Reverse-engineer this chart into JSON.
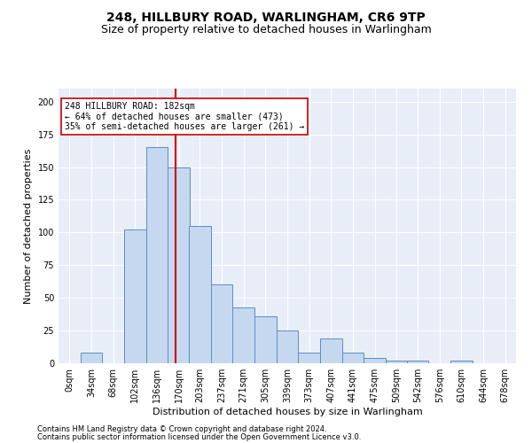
{
  "title": "248, HILLBURY ROAD, WARLINGHAM, CR6 9TP",
  "subtitle": "Size of property relative to detached houses in Warlingham",
  "xlabel": "Distribution of detached houses by size in Warlingham",
  "ylabel": "Number of detached properties",
  "footer_line1": "Contains HM Land Registry data © Crown copyright and database right 2024.",
  "footer_line2": "Contains public sector information licensed under the Open Government Licence v3.0.",
  "bin_labels": [
    "0sqm",
    "34sqm",
    "68sqm",
    "102sqm",
    "136sqm",
    "170sqm",
    "203sqm",
    "237sqm",
    "271sqm",
    "305sqm",
    "339sqm",
    "373sqm",
    "407sqm",
    "441sqm",
    "475sqm",
    "509sqm",
    "542sqm",
    "576sqm",
    "610sqm",
    "644sqm",
    "678sqm"
  ],
  "bar_heights": [
    0,
    8,
    0,
    102,
    165,
    150,
    105,
    60,
    43,
    36,
    25,
    8,
    19,
    8,
    4,
    2,
    2,
    0,
    2,
    0,
    0
  ],
  "bar_color": "#c5d8f0",
  "bar_edge_color": "#5a8fc3",
  "bin_width": 34,
  "bin_starts": [
    0,
    34,
    68,
    102,
    136,
    170,
    203,
    237,
    271,
    305,
    339,
    373,
    407,
    441,
    475,
    509,
    542,
    576,
    610,
    644,
    678
  ],
  "vline_x": 182,
  "vline_color": "#cc0000",
  "annotation_text": "248 HILLBURY ROAD: 182sqm\n← 64% of detached houses are smaller (473)\n35% of semi-detached houses are larger (261) →",
  "annotation_box_color": "#ffffff",
  "annotation_box_edge": "#cc0000",
  "ylim": [
    0,
    210
  ],
  "xlim": [
    0,
    712
  ],
  "bg_color": "#e8eef8",
  "grid_color": "#ffffff",
  "title_fontsize": 10,
  "subtitle_fontsize": 9,
  "label_fontsize": 8,
  "tick_fontsize": 7,
  "annot_fontsize": 7,
  "footer_fontsize": 6
}
